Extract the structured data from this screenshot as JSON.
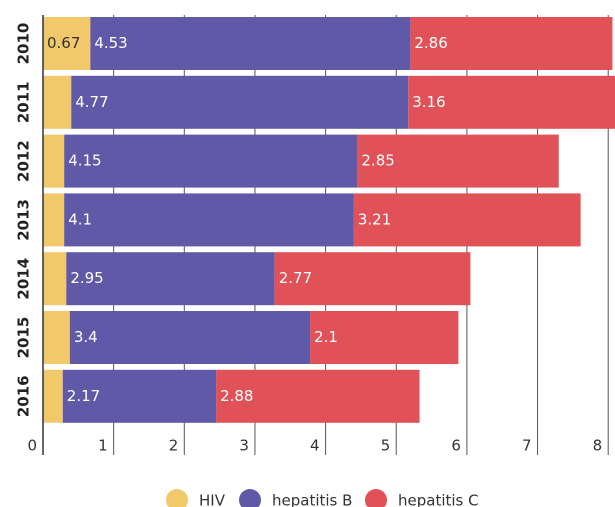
{
  "chart_data": {
    "type": "stacked-barh",
    "categories": [
      "2010",
      "2011",
      "2012",
      "2013",
      "2014",
      "2015",
      "2016"
    ],
    "series": [
      {
        "name": "HIV",
        "color": "#f2c96a",
        "values": [
          0.67,
          0.4,
          0.3,
          0.3,
          0.33,
          0.38,
          0.28
        ],
        "value_labels": [
          "0.67",
          null,
          null,
          null,
          null,
          null,
          null
        ]
      },
      {
        "name": "hepatitis B",
        "color": "#6059a8",
        "values": [
          4.53,
          4.77,
          4.15,
          4.1,
          2.95,
          3.4,
          2.17
        ]
      },
      {
        "name": "hepatitis C",
        "color": "#e05258",
        "values": [
          2.86,
          3.16,
          2.85,
          3.21,
          2.77,
          2.1,
          2.88
        ]
      }
    ],
    "xlim": [
      0,
      8.1
    ],
    "xticks": [
      0,
      1,
      2,
      3,
      4,
      5,
      6,
      7,
      8
    ],
    "grid": true
  }
}
